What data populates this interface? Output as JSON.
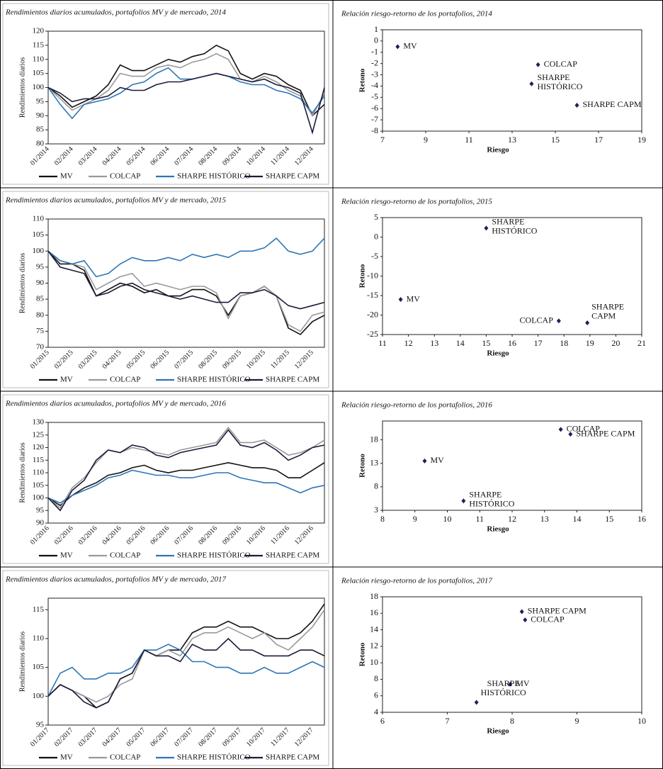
{
  "chart_data": [
    {
      "type": "line",
      "title": "Rendimientos diarios acumulados, portafolios MV y de mercado, 2014",
      "y_label": "Rendimientos diarios",
      "categories": [
        "01/2014",
        null,
        "02/2014",
        null,
        "03/2014",
        null,
        "04/2014",
        null,
        "05/2014",
        null,
        "06/2014",
        null,
        "07/2014",
        null,
        "08/2014",
        null,
        "09/2014",
        null,
        "10/2014",
        null,
        "11/2014",
        null,
        "12/2014",
        null
      ],
      "series": [
        {
          "name": "MV",
          "color": "#111111",
          "values": [
            100,
            97,
            93,
            95,
            97,
            101,
            108,
            106,
            106,
            108,
            110,
            109,
            111,
            112,
            115,
            113,
            105,
            103,
            105,
            104,
            101,
            99,
            90,
            94
          ]
        },
        {
          "name": "COLCAP",
          "color": "#999999",
          "values": [
            100,
            96,
            92,
            94,
            96,
            99,
            105,
            104,
            104,
            107,
            108,
            107,
            109,
            110,
            112,
            110,
            103,
            102,
            104,
            102,
            99,
            97,
            90,
            98
          ]
        },
        {
          "name": "SHARPE HISTÓRICO",
          "color": "#2e75b6",
          "values": [
            100,
            94,
            89,
            94,
            95,
            96,
            98,
            101,
            102,
            105,
            107,
            103,
            103,
            104,
            105,
            104,
            102,
            101,
            101,
            99,
            98,
            96,
            91,
            97
          ]
        },
        {
          "name": "SHARPE CAPM",
          "color": "#1b1b3a",
          "values": [
            100,
            98,
            95,
            96,
            96,
            97,
            100,
            99,
            99,
            101,
            102,
            102,
            103,
            104,
            105,
            104,
            103,
            102,
            103,
            101,
            100,
            98,
            84,
            100
          ]
        }
      ],
      "ylim": [
        80,
        120
      ],
      "yticks": [
        80,
        85,
        90,
        95,
        100,
        105,
        110,
        115,
        120
      ],
      "legend": "bottom"
    },
    {
      "type": "scatter",
      "title": "Relación riesgo-retorno de los portafolios, 2014",
      "x_label": "Riesgo",
      "y_label": "Retono",
      "x": [
        7.7,
        14.2,
        13.9,
        16
      ],
      "values": [
        -0.5,
        -2.1,
        -3.8,
        -5.7
      ],
      "labels": [
        [
          "MV"
        ],
        [
          "COLCAP"
        ],
        [
          "SHARPE",
          "HISTÓRICO"
        ],
        [
          "SHARPE CAPM"
        ]
      ],
      "color": "#1f1f5f",
      "xlim": [
        7,
        19
      ],
      "xticks": [
        7,
        9,
        11,
        13,
        15,
        17,
        19
      ],
      "ylim": [
        -8,
        1
      ],
      "yticks": [
        -8,
        -7,
        -6,
        -5,
        -4,
        -3,
        -2,
        -1,
        0,
        1
      ]
    },
    {
      "type": "line",
      "title": "Rendimientos diarios acumulados, portafolios MV y de mercado, 2015",
      "y_label": "Rendimientos diarios",
      "categories": [
        "01/2015",
        null,
        "02/2015",
        null,
        "03/2015",
        null,
        "04/2015",
        null,
        "05/2015",
        null,
        "06/2015",
        null,
        "07/2015",
        null,
        "08/2015",
        null,
        "09/2015",
        null,
        "10/2015",
        null,
        "11/2015",
        null,
        "12/2015",
        null
      ],
      "series": [
        {
          "name": "MV",
          "color": "#111111",
          "values": [
            100,
            96,
            96,
            94,
            86,
            88,
            90,
            89,
            87,
            88,
            86,
            86,
            88,
            88,
            86,
            80,
            86,
            87,
            89,
            86,
            76,
            74,
            78,
            80
          ]
        },
        {
          "name": "COLCAP",
          "color": "#999999",
          "values": [
            100,
            97,
            96,
            95,
            88,
            90,
            92,
            93,
            89,
            90,
            89,
            88,
            89,
            89,
            87,
            79,
            86,
            87,
            89,
            86,
            77,
            75,
            80,
            81
          ]
        },
        {
          "name": "SHARPE HISTÓRICO",
          "color": "#2e75b6",
          "values": [
            100,
            97,
            96,
            97,
            92,
            93,
            96,
            98,
            97,
            97,
            98,
            97,
            99,
            98,
            99,
            98,
            100,
            100,
            101,
            104,
            100,
            99,
            100,
            104
          ]
        },
        {
          "name": "SHARPE CAPM",
          "color": "#1b1b3a",
          "values": [
            100,
            95,
            94,
            93,
            86,
            87,
            89,
            90,
            88,
            87,
            86,
            85,
            86,
            85,
            84,
            84,
            87,
            87,
            88,
            86,
            83,
            82,
            83,
            84
          ]
        }
      ],
      "ylim": [
        70,
        110
      ],
      "yticks": [
        70,
        75,
        80,
        85,
        90,
        95,
        100,
        105,
        110
      ],
      "legend": "bottom"
    },
    {
      "type": "scatter",
      "title": "Relación riesgo-retorno de los portafolios, 2015",
      "x_label": "Riesgo",
      "y_label": "Retono",
      "x": [
        11.7,
        15,
        17.8,
        18.9
      ],
      "values": [
        -16,
        2.3,
        -21.5,
        -22
      ],
      "labels": [
        [
          "MV"
        ],
        [
          "SHARPE",
          "HISTÓRICO"
        ],
        [
          "COLCAP"
        ],
        [
          "SHARPE",
          "CAPM"
        ]
      ],
      "color": "#1f1f5f",
      "xlim": [
        11,
        21
      ],
      "xticks": [
        11,
        12,
        13,
        14,
        15,
        16,
        17,
        18,
        19,
        20,
        21
      ],
      "ylim": [
        -25,
        5
      ],
      "yticks": [
        -25,
        -20,
        -15,
        -10,
        -5,
        0,
        5
      ]
    },
    {
      "type": "line",
      "title": "Rendimientos diarios acumulados, portafolios MV y de mercado, 2016",
      "y_label": "Rendimientos diarios",
      "categories": [
        "01/2016",
        null,
        "02/2016",
        null,
        "03/2016",
        null,
        "04/2016",
        null,
        "05/2016",
        null,
        "06/2016",
        null,
        "07/2016",
        null,
        "08/2016",
        null,
        "09/2016",
        null,
        "10/2016",
        null,
        "11/2016",
        null,
        "12/2016",
        null
      ],
      "series": [
        {
          "name": "MV",
          "color": "#111111",
          "values": [
            100,
            97,
            101,
            104,
            106,
            109,
            110,
            112,
            113,
            111,
            110,
            111,
            111,
            112,
            113,
            114,
            113,
            112,
            112,
            111,
            108,
            108,
            111,
            114
          ]
        },
        {
          "name": "COLCAP",
          "color": "#999999",
          "values": [
            100,
            96,
            104,
            108,
            114,
            119,
            118,
            120,
            119,
            118,
            117,
            119,
            120,
            121,
            122,
            128,
            122,
            122,
            123,
            120,
            117,
            118,
            120,
            123
          ]
        },
        {
          "name": "SHARPE HISTÓRICO",
          "color": "#2e75b6",
          "values": [
            100,
            98,
            101,
            103,
            105,
            108,
            109,
            111,
            110,
            109,
            109,
            108,
            108,
            109,
            110,
            110,
            108,
            107,
            106,
            106,
            104,
            102,
            104,
            105
          ]
        },
        {
          "name": "SHARPE CAPM",
          "color": "#1b1b3a",
          "values": [
            100,
            95,
            103,
            107,
            115,
            119,
            118,
            121,
            120,
            117,
            116,
            118,
            119,
            120,
            121,
            127,
            121,
            120,
            122,
            119,
            115,
            117,
            120,
            121
          ]
        }
      ],
      "ylim": [
        90,
        130
      ],
      "yticks": [
        90,
        95,
        100,
        105,
        110,
        115,
        120,
        125,
        130
      ],
      "legend": "bottom"
    },
    {
      "type": "scatter",
      "title": "Relación riesgo-retorno de los portafolios, 2016",
      "x_label": "Riesgo",
      "y_label": "Retono",
      "x": [
        9.3,
        10.5,
        13.5,
        13.8
      ],
      "values": [
        13.5,
        5,
        20.2,
        19.2
      ],
      "labels": [
        [
          "MV"
        ],
        [
          "SHARPE",
          "HISTÓRICO"
        ],
        [
          "COLCAP"
        ],
        [
          "SHARPE CAPM"
        ]
      ],
      "color": "#1f1f5f",
      "xlim": [
        8,
        16
      ],
      "xticks": [
        8,
        9,
        10,
        11,
        12,
        13,
        14,
        15,
        16
      ],
      "ylim": [
        3,
        22
      ],
      "yticks": [
        3,
        8,
        13,
        18
      ]
    },
    {
      "type": "line",
      "title": "Rendimientos diarios acumulados, portafolios MV y de mercado, 2017",
      "y_label": "Rendimientos diarios",
      "categories": [
        "01/2017",
        null,
        "02/2017",
        null,
        "03/2017",
        null,
        "04/2017",
        null,
        "05/2017",
        null,
        "06/2017",
        null,
        "07/2017",
        null,
        "08/2017",
        null,
        "09/2017",
        null,
        "10/2017",
        null,
        "11/2017",
        null,
        "12/2017",
        null
      ],
      "series": [
        {
          "name": "MV",
          "color": "#111111",
          "values": [
            100,
            102,
            101,
            100,
            98,
            99,
            103,
            104,
            108,
            107,
            108,
            108,
            111,
            112,
            112,
            113,
            112,
            112,
            111,
            110,
            110,
            111,
            113,
            116
          ]
        },
        {
          "name": "COLCAP",
          "color": "#999999",
          "values": [
            100,
            102,
            101,
            100,
            99,
            100,
            102,
            103,
            108,
            107,
            108,
            107,
            110,
            111,
            111,
            112,
            111,
            110,
            111,
            109,
            108,
            110,
            112,
            115
          ]
        },
        {
          "name": "SHARPE HISTÓRICO",
          "color": "#2e75b6",
          "values": [
            100,
            104,
            105,
            103,
            103,
            104,
            104,
            105,
            108,
            108,
            109,
            108,
            106,
            106,
            105,
            105,
            104,
            104,
            105,
            104,
            104,
            105,
            106,
            105
          ]
        },
        {
          "name": "SHARPE CAPM",
          "color": "#1b1b3a",
          "values": [
            100,
            102,
            101,
            99,
            98,
            99,
            103,
            104,
            108,
            107,
            107,
            106,
            109,
            108,
            108,
            110,
            108,
            108,
            107,
            107,
            107,
            108,
            108,
            107
          ]
        }
      ],
      "ylim": [
        95,
        117
      ],
      "yticks": [
        95,
        100,
        105,
        110,
        115
      ],
      "legend": "bottom"
    },
    {
      "type": "scatter",
      "title": "Relación riesgo-retorno de los portafolios, 2017",
      "x_label": "Riesgo",
      "y_label": "Retono",
      "x": [
        8.15,
        8.2,
        7.97,
        7.45
      ],
      "values": [
        16.2,
        15.2,
        7.4,
        5.2
      ],
      "labels": [
        [
          "SHARPE CAPM"
        ],
        [
          "COLCAP"
        ],
        [
          "MV"
        ],
        [
          "SHARPE",
          "HISTÓRICO"
        ]
      ],
      "color": "#1f1f5f",
      "xlim": [
        6,
        10
      ],
      "xticks": [
        6,
        7,
        8,
        9,
        10
      ],
      "ylim": [
        4,
        18
      ],
      "yticks": [
        4,
        6,
        8,
        10,
        12,
        14,
        16,
        18
      ]
    }
  ]
}
